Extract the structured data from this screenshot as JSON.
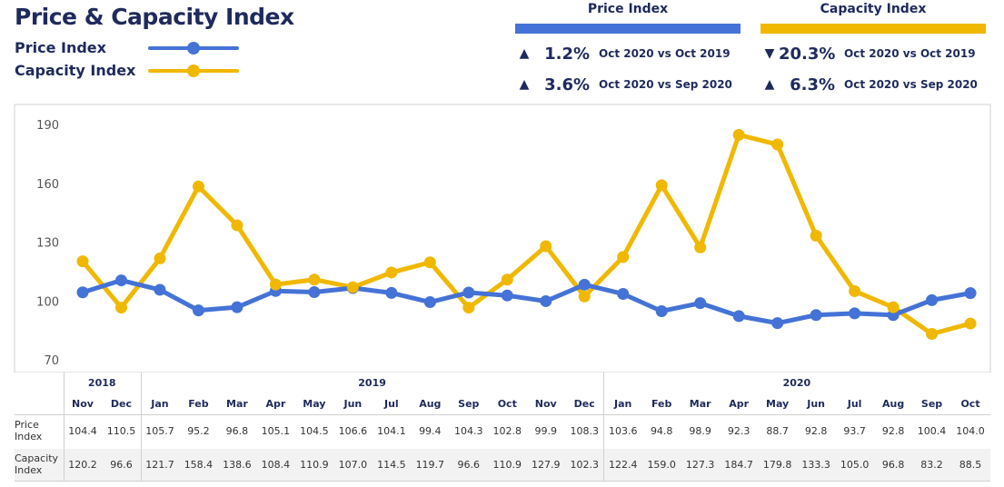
{
  "title": "Price & Capacity Index",
  "legend": [
    {
      "label": "Price Index",
      "color": "#4472d6"
    },
    {
      "label": "Capacity Index",
      "color": "#f0b800"
    }
  ],
  "kpis": [
    {
      "header": "Price Index",
      "color": "#4472d6",
      "rows": [
        {
          "direction": "up",
          "arrow": "▲",
          "value": "1.2%",
          "comparison": "Oct 2020 vs Oct 2019"
        },
        {
          "direction": "up",
          "arrow": "▲",
          "value": "3.6%",
          "comparison": "Oct 2020 vs Sep 2020"
        }
      ]
    },
    {
      "header": "Capacity Index",
      "color": "#f0b800",
      "rows": [
        {
          "direction": "down",
          "arrow": "▼",
          "value": "20.3%",
          "comparison": "Oct 2020 vs Oct 2019"
        },
        {
          "direction": "up",
          "arrow": "▲",
          "value": "6.3%",
          "comparison": "Oct 2020 vs Sep 2020"
        }
      ]
    }
  ],
  "chart_data": {
    "type": "line",
    "ylim": [
      70,
      190
    ],
    "yticks": [
      "70",
      "100",
      "130",
      "160",
      "190"
    ],
    "grid": false,
    "years": [
      {
        "label": "2018",
        "count": 2
      },
      {
        "label": "2019",
        "count": 12
      },
      {
        "label": "2020",
        "count": 10
      }
    ],
    "categories": [
      "Nov",
      "Dec",
      "Jan",
      "Feb",
      "Mar",
      "Apr",
      "May",
      "Jun",
      "Jul",
      "Aug",
      "Sep",
      "Oct",
      "Nov",
      "Dec",
      "Jan",
      "Feb",
      "Mar",
      "Apr",
      "May",
      "Jun",
      "Jul",
      "Aug",
      "Sep",
      "Oct"
    ],
    "series": [
      {
        "name": "Price Index",
        "row_label": "Price Index",
        "color": "#4472d6",
        "values": [
          104.4,
          110.5,
          105.7,
          95.2,
          96.8,
          105.1,
          104.5,
          106.6,
          104.1,
          99.4,
          104.3,
          102.8,
          99.9,
          108.3,
          103.6,
          94.8,
          98.9,
          92.3,
          88.7,
          92.8,
          93.7,
          92.8,
          100.4,
          104.0
        ]
      },
      {
        "name": "Capacity Index",
        "row_label": "Capacity Index",
        "color": "#f0b800",
        "values": [
          120.2,
          96.6,
          121.7,
          158.4,
          138.6,
          108.4,
          110.9,
          107.0,
          114.5,
          119.7,
          96.6,
          110.9,
          127.9,
          102.3,
          122.4,
          159.0,
          127.3,
          184.7,
          179.8,
          133.3,
          105.0,
          96.8,
          83.2,
          88.5
        ]
      }
    ]
  }
}
